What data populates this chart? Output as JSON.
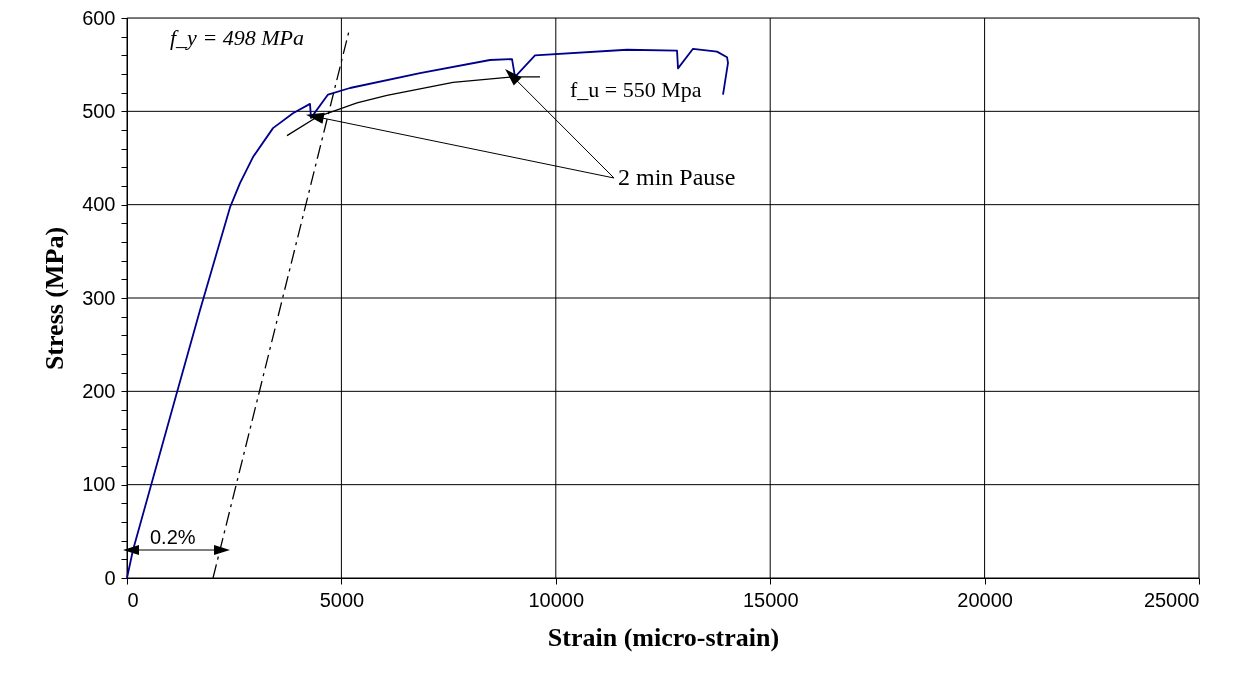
{
  "chart_data": {
    "type": "line",
    "xlabel": "Strain (micro-strain)",
    "ylabel": "Stress (MPa)",
    "xlim": [
      0,
      25000
    ],
    "xticks": [
      0,
      5000,
      10000,
      15000,
      20000,
      25000
    ],
    "ylim": [
      0,
      600
    ],
    "yticks": [
      0,
      {
        "value": 20,
        "label": null
      },
      {
        "value": 40,
        "label": null
      },
      {
        "value": 60,
        "label": null
      },
      {
        "value": 80,
        "label": null
      },
      100,
      {
        "value": 120,
        "label": null
      },
      {
        "value": 140,
        "label": null
      },
      {
        "value": 160,
        "label": null
      },
      {
        "value": 180,
        "label": null
      },
      200,
      {
        "value": 220,
        "label": null
      },
      {
        "value": 240,
        "label": null
      },
      {
        "value": 260,
        "label": null
      },
      {
        "value": 280,
        "label": null
      },
      300,
      {
        "value": 320,
        "label": null
      },
      {
        "value": 340,
        "label": null
      },
      {
        "value": 360,
        "label": null
      },
      {
        "value": 380,
        "label": null
      },
      400,
      {
        "value": 420,
        "label": null
      },
      {
        "value": 440,
        "label": null
      },
      {
        "value": 460,
        "label": null
      },
      {
        "value": 480,
        "label": null
      },
      500,
      {
        "value": 520,
        "label": null
      },
      {
        "value": 540,
        "label": null
      },
      {
        "value": 560,
        "label": null
      },
      {
        "value": 580,
        "label": null
      },
      600
    ],
    "grid": true,
    "marker": "none",
    "series": [
      {
        "color": "#00008b",
        "line_style": "solid",
        "x": [
          0,
          140,
          1166,
          1702,
          2402,
          2635,
          2938,
          3405,
          3871,
          4268,
          4291,
          4688,
          5200,
          6833,
          8465,
          8979,
          9049,
          9515,
          11660,
          12827,
          12850,
          13200,
          13760,
          13993,
          14016,
          13900
        ],
        "values": [
          0,
          30,
          199,
          287,
          397,
          423,
          451,
          482,
          498,
          508,
          493,
          518,
          525,
          541,
          555,
          556,
          537,
          560,
          566,
          565,
          546,
          567,
          564,
          558,
          552,
          518
        ]
      },
      {
        "color": "#000000",
        "line_style": "solid",
        "x": [
          3731,
          4431,
          4804,
          5364,
          6063,
          7603,
          9002,
          9632
        ],
        "values": [
          474,
          494,
          500,
          509,
          517,
          531,
          537,
          537
        ]
      },
      {
        "color": "#000000",
        "line_style": "dashed",
        "x": [
          2006,
          5177
        ],
        "values": [
          0,
          586
        ]
      }
    ],
    "annotations": [
      "f_y = 498 MPa",
      "f_u = 550 Mpa",
      {
        "text": "2 min Pause",
        "x": 4431,
        "y": 494
      },
      "0.2%"
    ]
  }
}
